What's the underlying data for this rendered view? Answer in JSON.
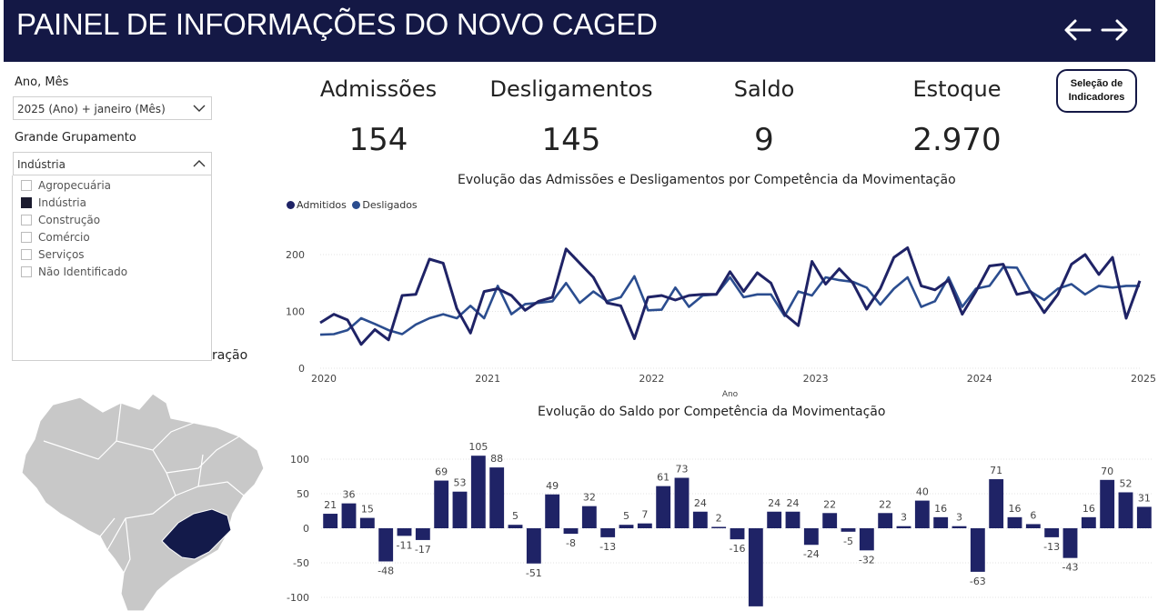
{
  "header": {
    "title": "PAINEL DE INFORMAÇÕES DO NOVO CAGED",
    "back_icon": "arrow-left-icon",
    "forward_icon": "arrow-right-icon",
    "bg_color": "#141845"
  },
  "filters": {
    "period_label": "Ano, Mês",
    "period_value": "2025 (Ano) + janeiro (Mês)",
    "group_label": "Grande Grupamento",
    "group_value": "Indústria",
    "group_options": [
      {
        "label": "Agropecuária",
        "checked": false
      },
      {
        "label": "Indústria",
        "checked": true
      },
      {
        "label": "Construção",
        "checked": false
      },
      {
        "label": "Comércio",
        "checked": false
      },
      {
        "label": "Serviços",
        "checked": false
      },
      {
        "label": "Não Identificado",
        "checked": false
      }
    ]
  },
  "kpis": [
    {
      "label": "Admissões",
      "value": "154"
    },
    {
      "label": "Desligamentos",
      "value": "145"
    },
    {
      "label": "Saldo",
      "value": "9"
    },
    {
      "label": "Estoque",
      "value": "2.970"
    }
  ],
  "selection_button": {
    "line1": "Seleção de",
    "line2": "Indicadores"
  },
  "map_title_visible": "ração",
  "colors": {
    "admitidos": "#1f2366",
    "desligados": "#2b4d8f",
    "bar": "#1f2366",
    "highlight_state": "#131a4a",
    "map_gray": "#c8c8c8"
  },
  "chart_data": [
    {
      "type": "line",
      "title": "Evolução das Admissões e Desligamentos por Competência da Movimentação",
      "xlabel": "Ano",
      "ylabel": "",
      "xlim": [
        2020,
        2025
      ],
      "ylim": [
        0,
        200
      ],
      "yticks": [
        0,
        100,
        200
      ],
      "xticks": [
        "2020",
        "2021",
        "2022",
        "2023",
        "2024",
        "2025"
      ],
      "legend": [
        "Admitidos",
        "Desligados"
      ],
      "series": [
        {
          "name": "Admitidos",
          "values": [
            80,
            95,
            85,
            42,
            68,
            50,
            128,
            130,
            192,
            185,
            105,
            62,
            135,
            140,
            128,
            102,
            118,
            125,
            210,
            185,
            160,
            115,
            110,
            52,
            125,
            128,
            120,
            128,
            130,
            130,
            170,
            135,
            168,
            150,
            95,
            75,
            188,
            148,
            175,
            150,
            104,
            140,
            195,
            212,
            145,
            138,
            155,
            95,
            135,
            180,
            183,
            130,
            135,
            98,
            130,
            183,
            200,
            165,
            195,
            88,
            154
          ]
        },
        {
          "name": "Desligados",
          "values": [
            59,
            60,
            67,
            88,
            78,
            67,
            60,
            77,
            88,
            95,
            88,
            110,
            88,
            145,
            95,
            113,
            115,
            118,
            150,
            115,
            135,
            118,
            125,
            162,
            102,
            103,
            142,
            108,
            128,
            130,
            160,
            125,
            130,
            130,
            92,
            135,
            128,
            160,
            155,
            152,
            142,
            112,
            140,
            160,
            108,
            118,
            160,
            108,
            140,
            145,
            178,
            177,
            135,
            120,
            140,
            148,
            130,
            145,
            142,
            145,
            145
          ]
        }
      ]
    },
    {
      "type": "bar",
      "title": "Evolução do Saldo por Competência da Movimentação",
      "ylim": [
        -100,
        100
      ],
      "yticks": [
        -100,
        -50,
        0,
        50,
        100
      ],
      "values": [
        21,
        36,
        15,
        -48,
        -11,
        -17,
        69,
        53,
        105,
        88,
        5,
        -51,
        49,
        -8,
        32,
        -13,
        5,
        7,
        61,
        73,
        24,
        2,
        -16,
        -113,
        24,
        24,
        -24,
        22,
        -5,
        -32,
        22,
        3,
        40,
        16,
        3,
        -63,
        71,
        16,
        6,
        -13,
        -43,
        16,
        70,
        52,
        31
      ],
      "labels": [
        "21",
        "36",
        "15",
        "-48",
        "-11",
        "-17",
        "69",
        "53",
        "105",
        "88",
        "5",
        "-51",
        "49",
        "-8",
        "32",
        "-13",
        "5",
        "7",
        "61",
        "73",
        "24",
        "2",
        "-16",
        "",
        "24",
        "24",
        "-24",
        "22",
        "-5",
        "-32",
        "22",
        "3",
        "40",
        "16",
        "3",
        "-63",
        "71",
        "16",
        "6",
        "-13",
        "-43",
        "16",
        "70",
        "52",
        "31"
      ]
    }
  ]
}
